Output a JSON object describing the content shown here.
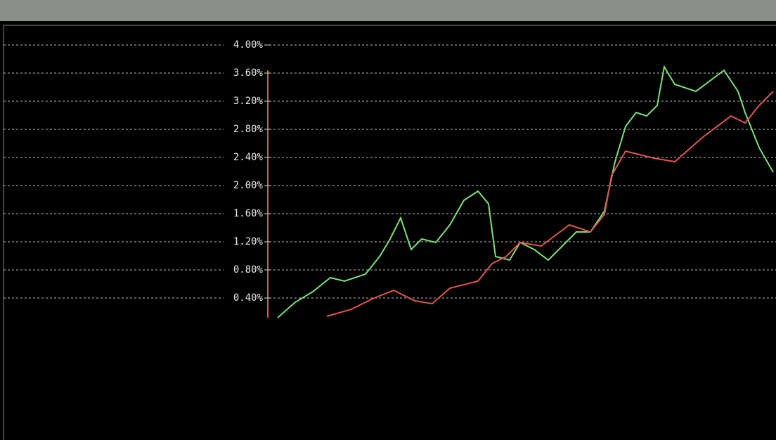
{
  "chart_data": {
    "type": "line",
    "xlim": [
      0,
      1104
    ],
    "ylim": [
      0.1,
      4.28
    ],
    "yticks": [
      {
        "value": 0.4,
        "label": "0.40%"
      },
      {
        "value": 0.8,
        "label": "0.80%"
      },
      {
        "value": 1.2,
        "label": "1.20%"
      },
      {
        "value": 1.6,
        "label": "1.60%"
      },
      {
        "value": 2.0,
        "label": "2.00%"
      },
      {
        "value": 2.4,
        "label": "2.40%"
      },
      {
        "value": 2.8,
        "label": "2.80%"
      },
      {
        "value": 3.2,
        "label": "3.20%"
      },
      {
        "value": 3.6,
        "label": "3.60%"
      },
      {
        "value": 4.0,
        "label": "4.00%"
      }
    ],
    "grid": true,
    "series": [
      {
        "color": "#7be07b",
        "x": [
          395,
          420,
          445,
          470,
          490,
          520,
          540,
          555,
          570,
          585,
          600,
          620,
          640,
          660,
          680,
          695,
          705,
          725,
          740,
          760,
          780,
          800,
          820,
          840,
          860,
          875,
          890,
          905,
          920,
          935,
          945,
          960,
          990,
          1030,
          1050,
          1060,
          1080,
          1100
        ],
        "values": [
          0.12,
          0.34,
          0.49,
          0.69,
          0.64,
          0.74,
          0.99,
          1.24,
          1.54,
          1.09,
          1.24,
          1.19,
          1.44,
          1.79,
          1.92,
          1.74,
          0.99,
          0.94,
          1.19,
          1.09,
          0.94,
          1.14,
          1.34,
          1.34,
          1.64,
          2.34,
          2.84,
          3.04,
          2.99,
          3.14,
          3.69,
          3.44,
          3.34,
          3.64,
          3.34,
          3.04,
          2.54,
          2.19
        ]
      },
      {
        "color": "#e05555",
        "x": [
          465,
          500,
          530,
          560,
          590,
          615,
          640,
          680,
          700,
          720,
          740,
          770,
          810,
          840,
          860,
          870,
          890,
          930,
          960,
          1000,
          1040,
          1060,
          1080,
          1100
        ],
        "values": [
          0.14,
          0.24,
          0.39,
          0.51,
          0.36,
          0.32,
          0.54,
          0.64,
          0.89,
          0.99,
          1.19,
          1.14,
          1.44,
          1.34,
          1.59,
          2.14,
          2.49,
          2.39,
          2.34,
          2.69,
          2.99,
          2.89,
          3.14,
          3.34
        ]
      }
    ]
  }
}
